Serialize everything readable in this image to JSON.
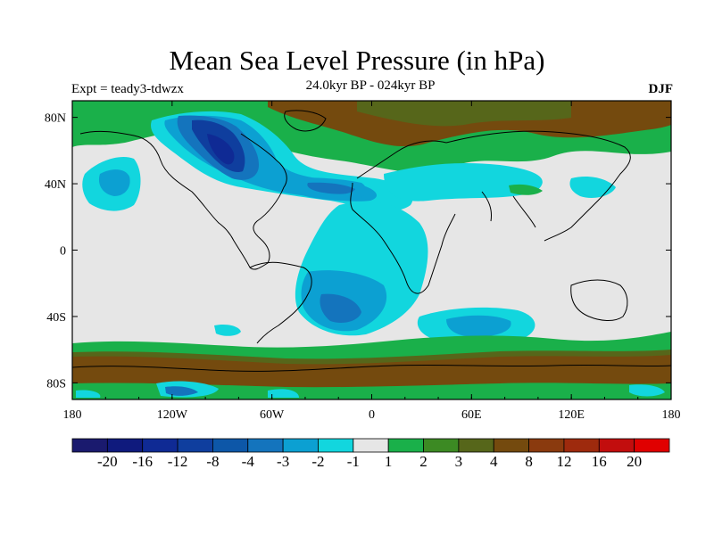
{
  "title": "Mean Sea Level Pressure (in hPa)",
  "subtitle_left": "Expt = teady3-tdwzx",
  "subtitle_center": "24.0kyr BP - 024kyr BP",
  "subtitle_right": "DJF",
  "map": {
    "projection": "cylindrical equidistant",
    "lon_range": [
      -180,
      180
    ],
    "lat_range": [
      -90,
      90
    ],
    "x_ticks": [
      "180",
      "120W",
      "60W",
      "0",
      "60E",
      "120E",
      "180"
    ],
    "y_ticks": [
      "80N",
      "40N",
      "0",
      "40S",
      "80S"
    ]
  },
  "colorbar": {
    "labels": [
      "-20",
      "-16",
      "-12",
      "-8",
      "-4",
      "-3",
      "-2",
      "-1",
      "1",
      "2",
      "3",
      "4",
      "8",
      "12",
      "16",
      "20"
    ],
    "colors": [
      "#1a1a6e",
      "#0f1a7d",
      "#0f2a94",
      "#0f3e9e",
      "#0d57a8",
      "#1474bd",
      "#0ca0d2",
      "#12d6de",
      "#e6e6e6",
      "#1ab04a",
      "#3c8a23",
      "#56661a",
      "#744a0e",
      "#8a3a0e",
      "#9e2a0d",
      "#c20d0d",
      "#e00000"
    ]
  },
  "colors": {
    "land_outline": "#000000",
    "neutral": "#e6e6e6"
  }
}
